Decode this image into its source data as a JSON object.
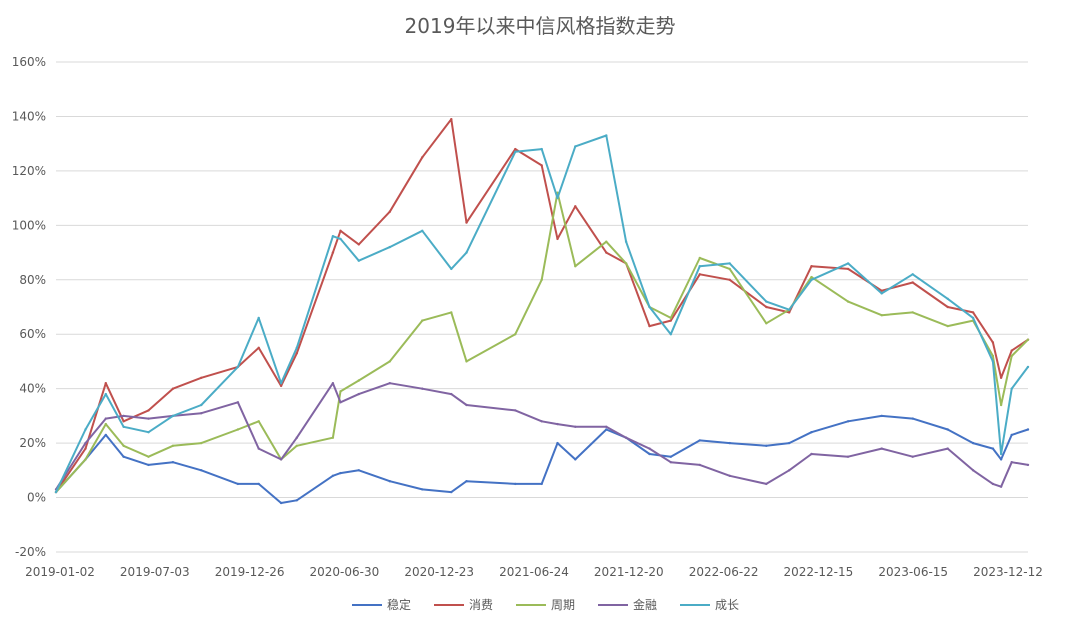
{
  "chart_data": {
    "type": "line",
    "title": "2019年以来中信风格指数走势",
    "xlabel": "",
    "ylabel": "",
    "ylim": [
      -0.2,
      1.6
    ],
    "yticks": [
      "-20%",
      "0%",
      "20%",
      "40%",
      "60%",
      "80%",
      "100%",
      "120%",
      "140%",
      "160%"
    ],
    "ytick_values": [
      -0.2,
      0,
      0.2,
      0.4,
      0.6,
      0.8,
      1.0,
      1.2,
      1.4,
      1.6
    ],
    "xticks": [
      "2019-01-02",
      "2019-07-03",
      "2019-12-26",
      "2020-06-30",
      "2020-12-23",
      "2021-06-24",
      "2021-12-20",
      "2022-06-22",
      "2022-12-15",
      "2023-06-15",
      "2023-12-12"
    ],
    "grid": true,
    "legend": "bottom",
    "x": [
      "2019-01-02",
      "2019-03-01",
      "2019-04-10",
      "2019-05-15",
      "2019-07-03",
      "2019-08-20",
      "2019-10-15",
      "2019-12-26",
      "2020-02-05",
      "2020-03-20",
      "2020-04-20",
      "2020-06-30",
      "2020-07-15",
      "2020-08-20",
      "2020-10-20",
      "2020-12-23",
      "2021-02-18",
      "2021-03-20",
      "2021-06-24",
      "2021-08-15",
      "2021-09-15",
      "2021-10-20",
      "2021-12-20",
      "2022-01-28",
      "2022-03-15",
      "2022-04-26",
      "2022-06-22",
      "2022-08-20",
      "2022-10-31",
      "2022-12-15",
      "2023-01-28",
      "2023-04-10",
      "2023-06-15",
      "2023-08-15",
      "2023-10-23",
      "2023-12-12",
      "2024-01-20",
      "2024-02-05",
      "2024-02-26",
      "2024-03-29"
    ],
    "series": [
      {
        "name": "稳定",
        "color": "#4472C4",
        "values": [
          0.02,
          0.14,
          0.23,
          0.15,
          0.12,
          0.13,
          0.1,
          0.05,
          0.05,
          -0.02,
          -0.01,
          0.08,
          0.09,
          0.1,
          0.06,
          0.03,
          0.02,
          0.06,
          0.05,
          0.05,
          0.2,
          0.14,
          0.25,
          0.22,
          0.16,
          0.15,
          0.21,
          0.2,
          0.19,
          0.2,
          0.24,
          0.28,
          0.3,
          0.29,
          0.25,
          0.2,
          0.18,
          0.14,
          0.23,
          0.25
        ]
      },
      {
        "name": "消费",
        "color": "#C0504D",
        "values": [
          0.02,
          0.18,
          0.42,
          0.28,
          0.32,
          0.4,
          0.44,
          0.48,
          0.55,
          0.41,
          0.53,
          0.9,
          0.98,
          0.93,
          1.05,
          1.25,
          1.39,
          1.01,
          1.28,
          1.22,
          0.95,
          1.07,
          0.9,
          0.86,
          0.63,
          0.65,
          0.82,
          0.8,
          0.7,
          0.68,
          0.85,
          0.84,
          0.76,
          0.79,
          0.7,
          0.68,
          0.57,
          0.44,
          0.54,
          0.58
        ]
      },
      {
        "name": "周期",
        "color": "#9BBB59",
        "values": [
          0.02,
          0.14,
          0.27,
          0.19,
          0.15,
          0.19,
          0.2,
          0.25,
          0.28,
          0.14,
          0.19,
          0.22,
          0.39,
          0.43,
          0.5,
          0.65,
          0.68,
          0.5,
          0.6,
          0.8,
          1.12,
          0.85,
          0.94,
          0.86,
          0.7,
          0.66,
          0.88,
          0.84,
          0.64,
          0.69,
          0.81,
          0.72,
          0.67,
          0.68,
          0.63,
          0.65,
          0.52,
          0.34,
          0.52,
          0.58
        ]
      },
      {
        "name": "金融",
        "color": "#8064A2",
        "values": [
          0.03,
          0.2,
          0.29,
          0.3,
          0.29,
          0.3,
          0.31,
          0.35,
          0.18,
          0.14,
          0.22,
          0.42,
          0.35,
          0.38,
          0.42,
          0.4,
          0.38,
          0.34,
          0.32,
          0.28,
          0.27,
          0.26,
          0.26,
          0.22,
          0.18,
          0.13,
          0.12,
          0.08,
          0.05,
          0.1,
          0.16,
          0.15,
          0.18,
          0.15,
          0.18,
          0.1,
          0.05,
          0.04,
          0.13,
          0.12
        ]
      },
      {
        "name": "成长",
        "color": "#4BACC6",
        "values": [
          0.02,
          0.25,
          0.38,
          0.26,
          0.24,
          0.3,
          0.34,
          0.48,
          0.66,
          0.42,
          0.55,
          0.96,
          0.95,
          0.87,
          0.92,
          0.98,
          0.84,
          0.9,
          1.27,
          1.28,
          1.1,
          1.29,
          1.33,
          0.94,
          0.7,
          0.6,
          0.85,
          0.86,
          0.72,
          0.69,
          0.8,
          0.86,
          0.75,
          0.82,
          0.73,
          0.66,
          0.5,
          0.16,
          0.4,
          0.48
        ]
      }
    ]
  }
}
